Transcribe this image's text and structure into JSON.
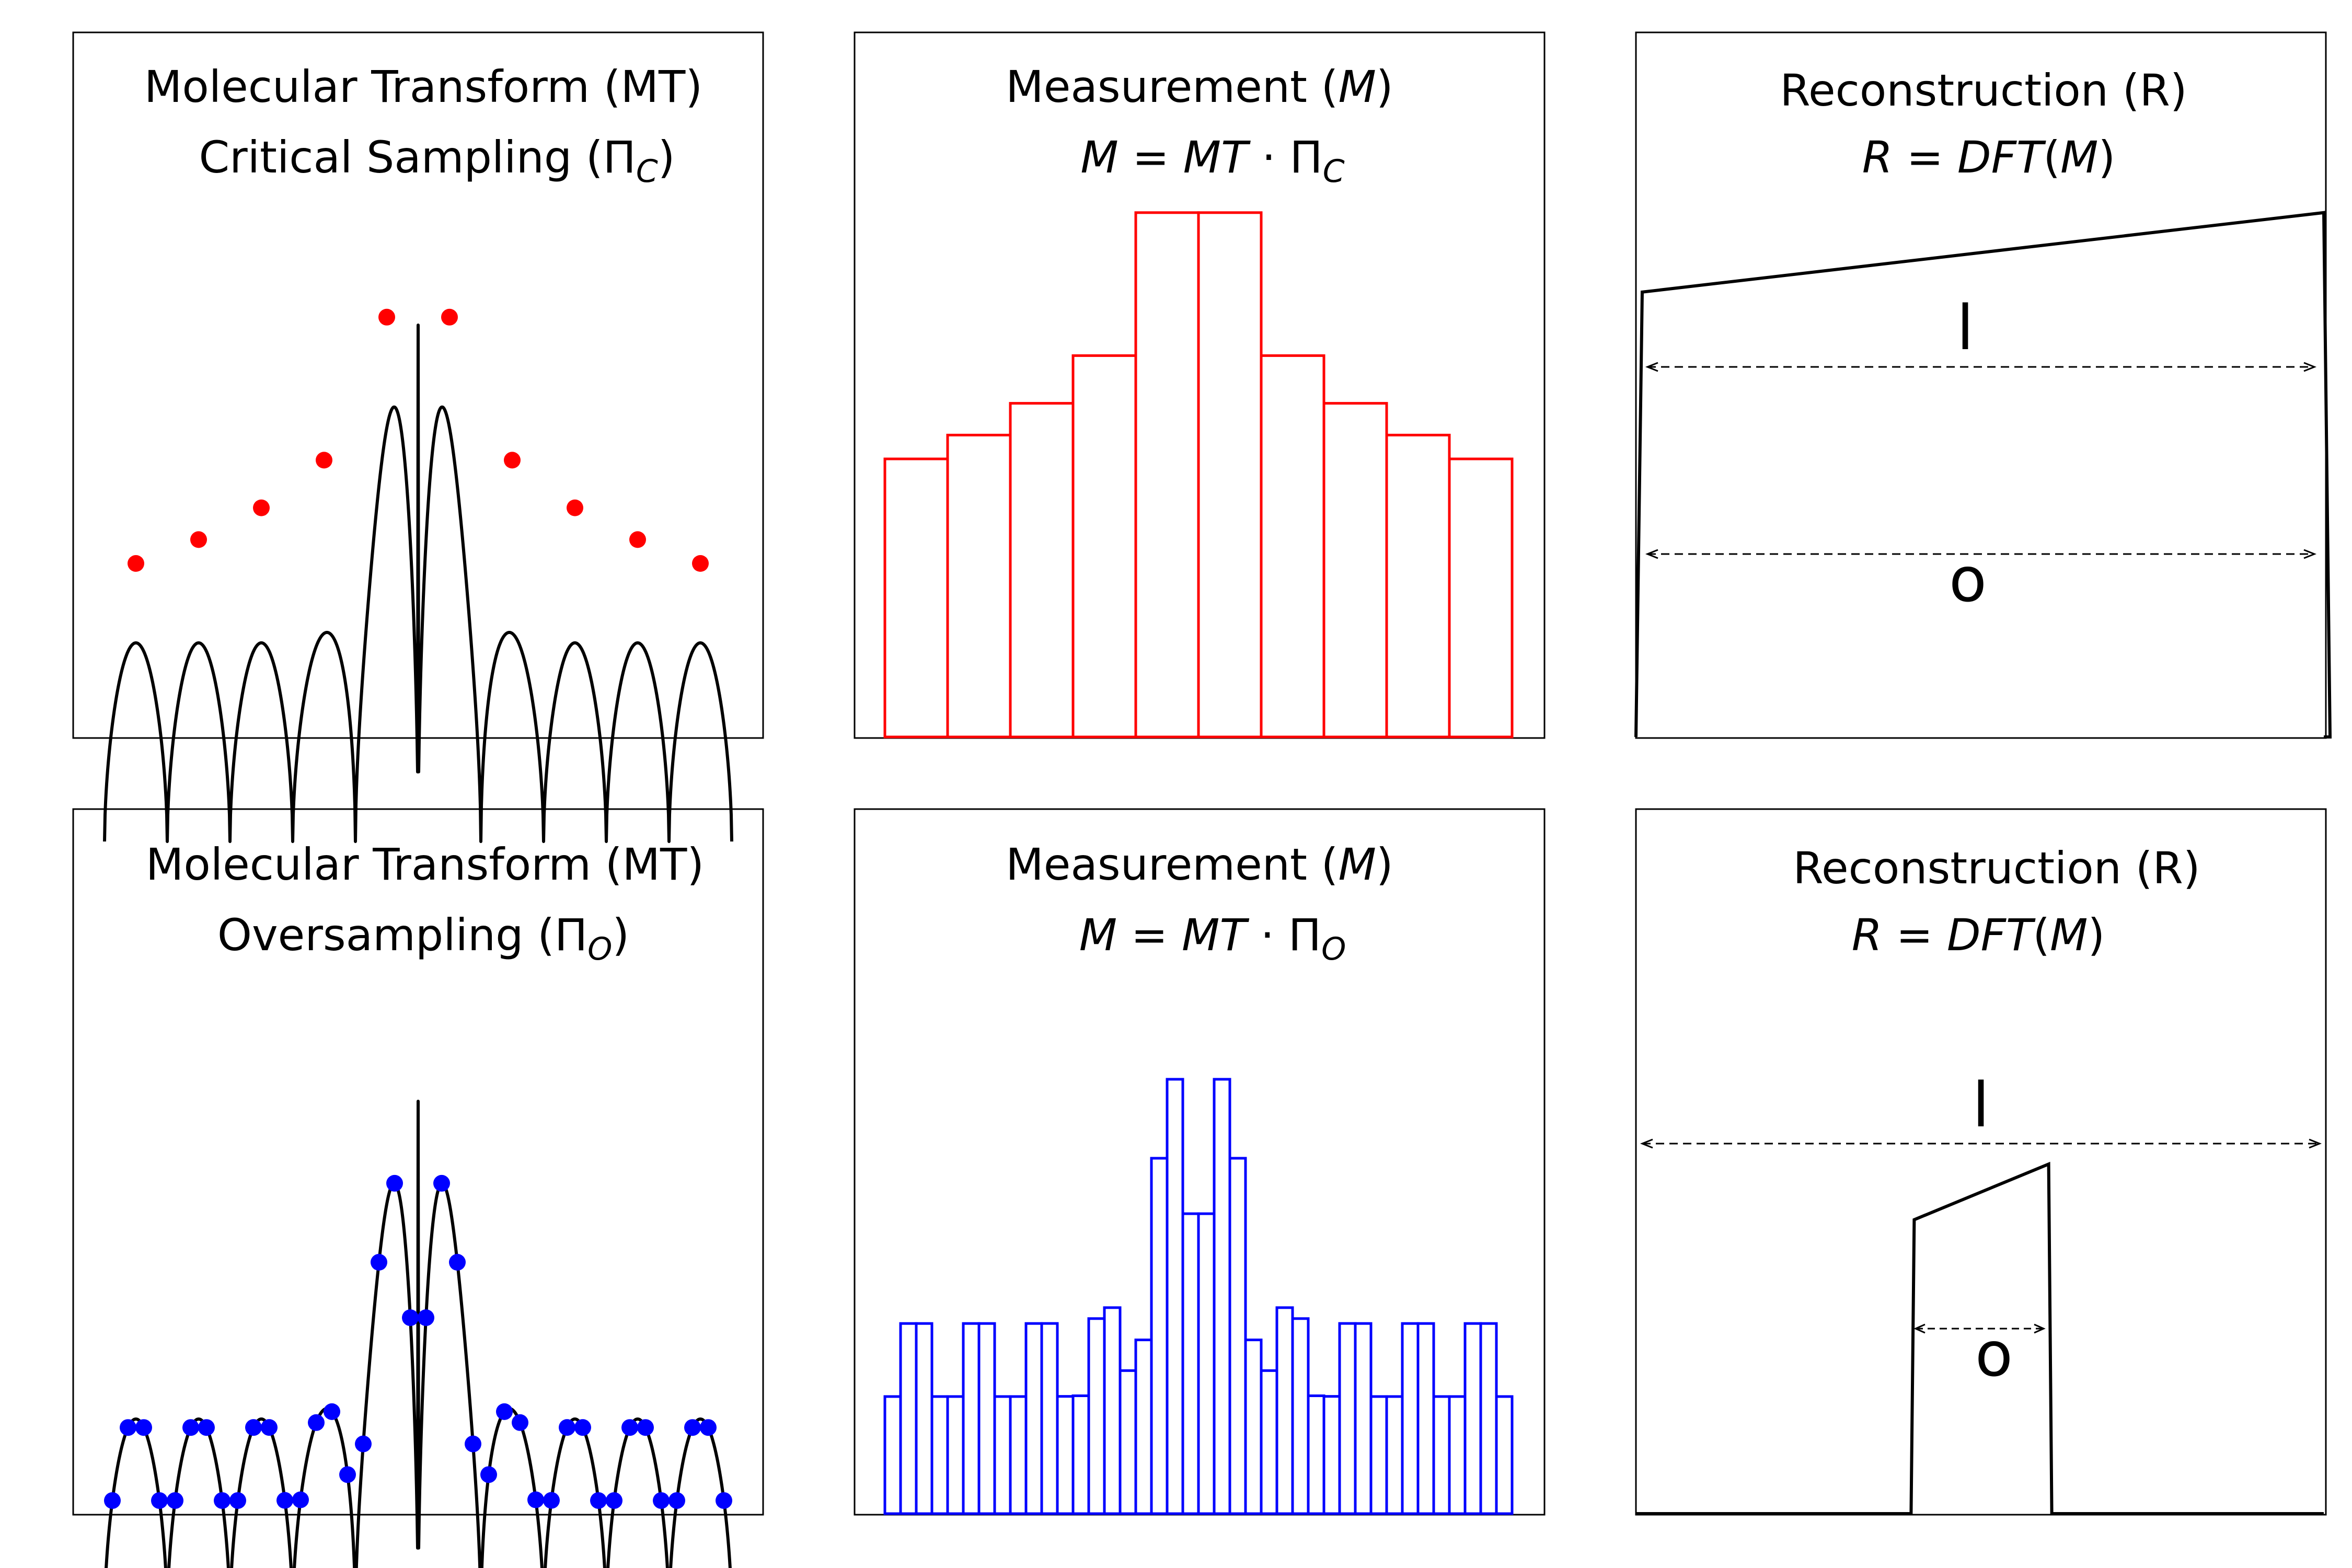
{
  "colors": {
    "critical": "#ff0000",
    "oversampling": "#0000ff",
    "curve": "#000000"
  },
  "rows": [
    {
      "sampling": "critical",
      "mt": {
        "title": "Molecular Transform (MT)",
        "subtitle_prefix": "Critical Sampling (",
        "subtitle_symbol": "Π",
        "subtitle_sub": "C",
        "subtitle_suffix": ")"
      },
      "measurement": {
        "title_prefix": "Measurement (",
        "title_var": "M",
        "title_suffix": ")",
        "eq_lhs": "M",
        "eq_eq": " = ",
        "eq_rhs": "MT",
        "eq_dot": " · ",
        "eq_symbol": "Π",
        "eq_sub": "C"
      },
      "reconstruction": {
        "title": "Reconstruction (R)",
        "eq_lhs": "R",
        "eq_eq": " = ",
        "eq_fn": "DFT",
        "eq_open": "(",
        "eq_arg": "M",
        "eq_close": ")",
        "label_l": "l",
        "label_o": "o"
      },
      "chart_data": {
        "type": "scatter",
        "samples_per_lobe": 1,
        "sample_x": [
          -4.5,
          -3.5,
          -2.5,
          -1.5,
          -0.5,
          0.5,
          1.5,
          2.5,
          3.5,
          4.5
        ],
        "measurement_values": [
          0.35,
          0.38,
          0.42,
          0.48,
          0.66,
          0.66,
          0.48,
          0.42,
          0.38,
          0.35
        ],
        "reconstruction": {
          "object_extent": [
            0.0,
            1.0
          ],
          "height_start": 0.56,
          "height_end": 0.66
        }
      }
    },
    {
      "sampling": "oversampling",
      "mt": {
        "title": "Molecular Transform (MT)",
        "subtitle_prefix": "Oversampling (",
        "subtitle_symbol": "Π",
        "subtitle_sub": "O",
        "subtitle_suffix": ")"
      },
      "measurement": {
        "title_prefix": "Measurement (",
        "title_var": "M",
        "title_suffix": ")",
        "eq_lhs": "M",
        "eq_eq": " = ",
        "eq_rhs": "MT",
        "eq_dot": " · ",
        "eq_symbol": "Π",
        "eq_sub": "O"
      },
      "reconstruction": {
        "title": "Reconstruction (R)",
        "eq_lhs": "R",
        "eq_eq": " = ",
        "eq_fn": "DFT",
        "eq_open": "(",
        "eq_arg": "M",
        "eq_close": ")",
        "label_l": "l",
        "label_o": "o"
      },
      "chart_data": {
        "type": "scatter",
        "samples_per_lobe": 4,
        "reconstruction": {
          "object_extent": [
            0.4,
            0.6
          ],
          "height_start": 0.37,
          "height_end": 0.44
        }
      }
    }
  ]
}
